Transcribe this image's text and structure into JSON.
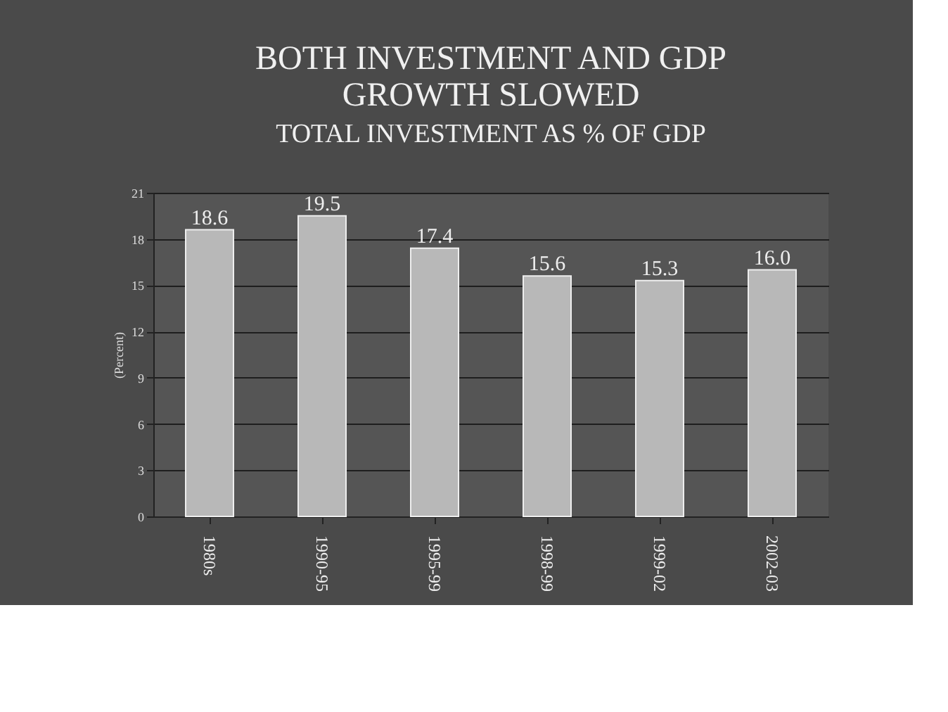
{
  "chart_data": {
    "type": "bar",
    "title": [
      "BOTH INVESTMENT AND GDP",
      "GROWTH SLOWED"
    ],
    "subtitle": "TOTAL INVESTMENT AS % OF GDP",
    "ylabel": "(Percent)",
    "categories": [
      "1980s",
      "1990-95",
      "1995-99",
      "1998-99",
      "1999-02",
      "2002-03"
    ],
    "values": [
      18.6,
      19.5,
      17.4,
      15.6,
      15.3,
      16.0
    ],
    "value_labels": [
      "18.6",
      "19.5",
      "17.4",
      "15.6",
      "15.3",
      "16.0"
    ],
    "color": "#b8b8b8",
    "ylim": [
      0,
      21
    ],
    "yticks": [
      0,
      3,
      6,
      9,
      12,
      15,
      18,
      21
    ],
    "grid": "y"
  }
}
